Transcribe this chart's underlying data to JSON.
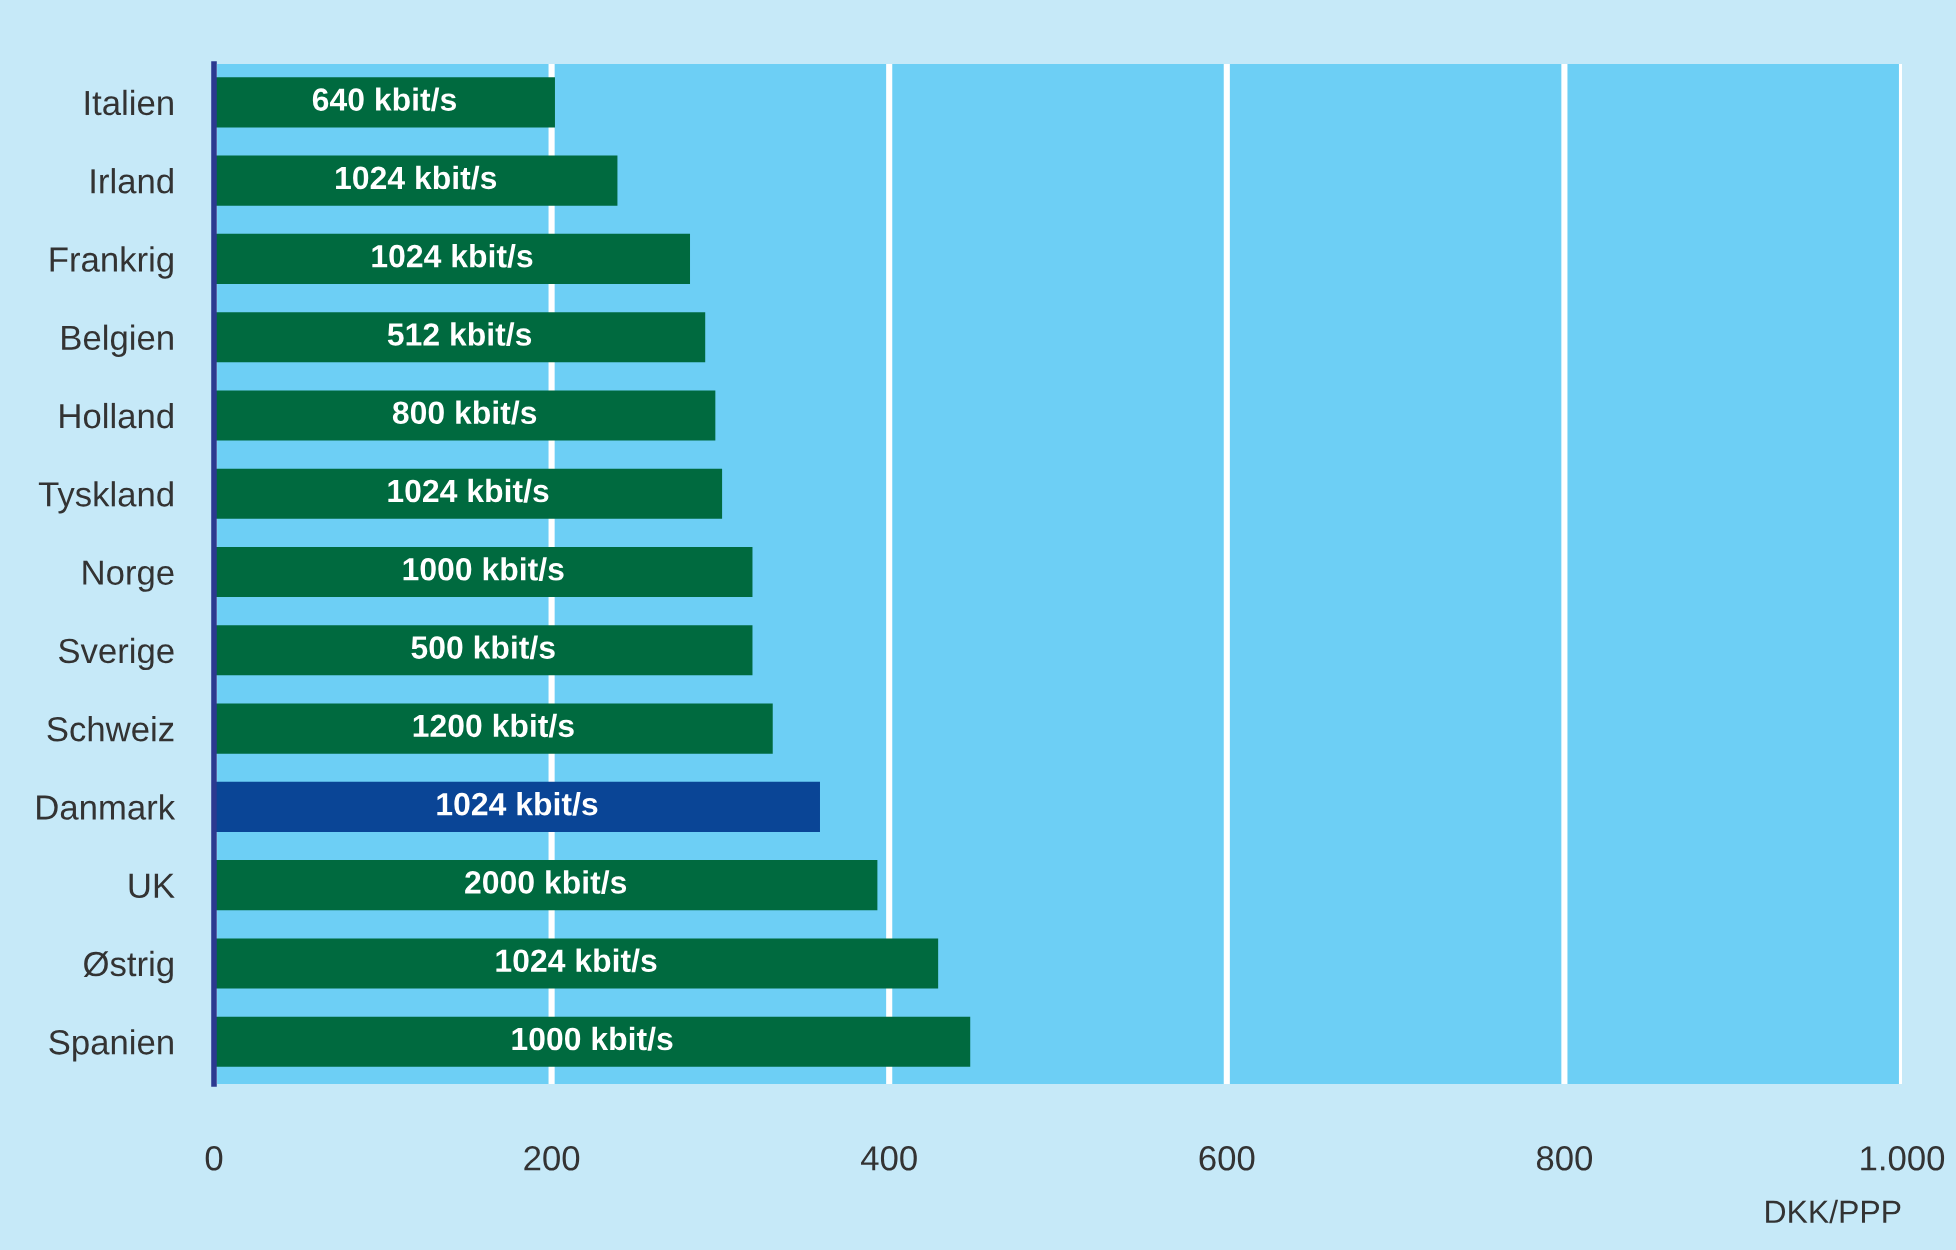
{
  "chart_data": {
    "type": "bar",
    "orientation": "horizontal",
    "xlabel": "DKK/PPP",
    "categories": [
      "Italien",
      "Irland",
      "Frankrig",
      "Belgien",
      "Holland",
      "Tyskland",
      "Norge",
      "Sverige",
      "Schweiz",
      "Danmark",
      "UK",
      "Østrig",
      "Spanien"
    ],
    "values": [
      202,
      239,
      282,
      291,
      297,
      301,
      319,
      319,
      331,
      359,
      393,
      429,
      448
    ],
    "colors": [
      "#006a3f",
      "#006a3f",
      "#006a3f",
      "#006a3f",
      "#006a3f",
      "#006a3f",
      "#006a3f",
      "#006a3f",
      "#006a3f",
      "#0a4596",
      "#006a3f",
      "#006a3f",
      "#006a3f"
    ],
    "annotations": [
      "640 kbit/s",
      "1024 kbit/s",
      "1024 kbit/s",
      "512 kbit/s",
      "800 kbit/s",
      "1024 kbit/s",
      "1000 kbit/s",
      "500 kbit/s",
      "1200 kbit/s",
      "1024 kbit/s",
      "2000 kbit/s",
      "1024 kbit/s",
      "1000 kbit/s"
    ],
    "xlim": [
      0,
      1000
    ],
    "xticks": [
      0,
      200,
      400,
      600,
      800,
      {
        "value": 1000,
        "label": "1.000"
      }
    ],
    "grid": "x"
  }
}
